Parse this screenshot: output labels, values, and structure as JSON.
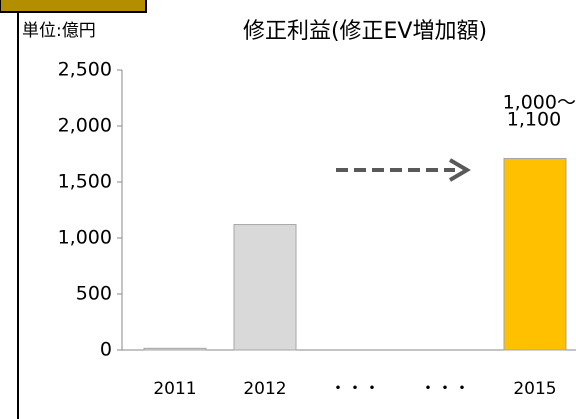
{
  "chart_data": {
    "type": "bar",
    "unit_label": "単位:億円",
    "title": "修正利益(修正EV増加額)",
    "categories": [
      "2011",
      "2012",
      "・・・",
      "・・・",
      "2015"
    ],
    "values": [
      15,
      1120,
      null,
      null,
      1710
    ],
    "colors": [
      "#d9d9d9",
      "#d9d9d9",
      null,
      null,
      "#ffc000"
    ],
    "annotation": [
      "1,000～",
      "1,100"
    ],
    "ylim": [
      0,
      2500
    ],
    "yticks": [
      0,
      {
        "value": 500,
        "label": "500"
      },
      {
        "value": 1000,
        "label": "1,000"
      },
      {
        "value": 1500,
        "label": "1,500"
      },
      {
        "value": 2000,
        "label": "2,000"
      },
      {
        "value": 2500,
        "label": "2,500"
      }
    ],
    "grid": false
  }
}
